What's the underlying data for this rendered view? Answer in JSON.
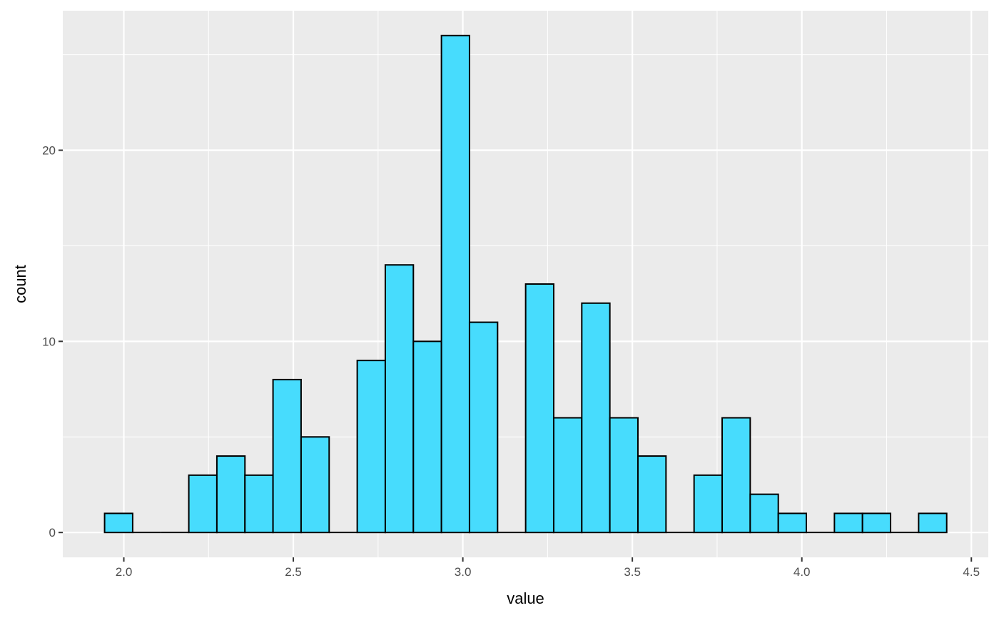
{
  "chart_data": {
    "type": "histogram",
    "xlabel": "value",
    "ylabel": "count",
    "x_ticks": [
      "2.0",
      "2.5",
      "3.0",
      "3.5",
      "4.0",
      "4.5"
    ],
    "y_ticks": [
      "0",
      "10",
      "20"
    ],
    "xlim": [
      1.82,
      4.55
    ],
    "ylim": [
      -1.3,
      27.3
    ],
    "bin_start": 1.9433,
    "bin_width": 0.0828,
    "counts": [
      1,
      0,
      0,
      3,
      4,
      3,
      8,
      5,
      0,
      9,
      14,
      10,
      26,
      11,
      0,
      13,
      6,
      12,
      6,
      4,
      0,
      3,
      6,
      2,
      1,
      0,
      1,
      1,
      0,
      1
    ],
    "grid": true,
    "colors": {
      "panel_background": "#ebebeb",
      "grid_line": "#ffffff",
      "bar_fill": "#47dcfd",
      "bar_outline": "#000000",
      "tick_text": "#4d4d4d",
      "axis_title": "#000000"
    }
  }
}
